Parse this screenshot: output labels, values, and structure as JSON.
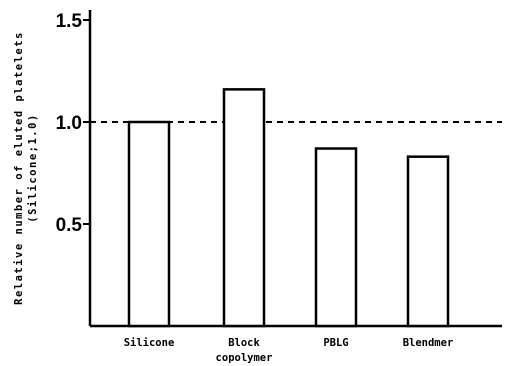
{
  "chart_data": {
    "type": "bar",
    "categories": [
      "Silicone",
      "Block copolymer",
      "PBLG",
      "Blendmer"
    ],
    "category_lines": [
      [
        "Silicone"
      ],
      [
        "Block",
        "copolymer"
      ],
      [
        "PBLG"
      ],
      [
        "Blendmer"
      ]
    ],
    "values": [
      1.0,
      1.16,
      0.87,
      0.83
    ],
    "title": "",
    "xlabel": "",
    "ylabel": "Relative number of eluted platelets",
    "ylabel_sub": "(Silicone;1.0)",
    "ylim": [
      0,
      1.5
    ],
    "yticks": [
      {
        "value": 0.5,
        "label": "0.5"
      },
      {
        "value": 1.0,
        "label": "1.0"
      },
      {
        "value": 1.5,
        "label": "1.5"
      }
    ],
    "reference_line": {
      "value": 1.0,
      "style": "dashed"
    },
    "grid": false,
    "legend": "none",
    "bar_fill": "#ffffff",
    "stroke_color": "#000000"
  }
}
